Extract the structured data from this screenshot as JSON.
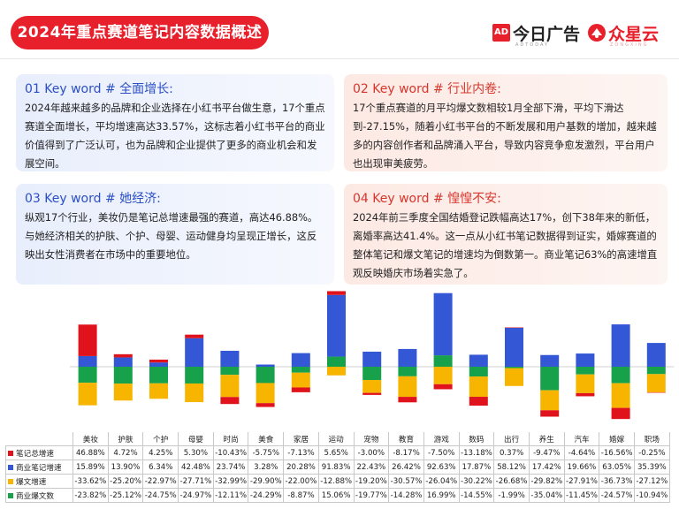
{
  "header": {
    "title": "2024年重点赛道笔记内容数据概述",
    "logo1_name": "今日广告",
    "logo1_mark": "AD",
    "logo1_sub": "ADTODAY",
    "logo2_name": "众星云",
    "logo2_sub": "ZONGXING"
  },
  "cards": [
    {
      "keyword": "01 Key word # 全面增长:",
      "text": "2024年越来越多的品牌和企业选择在小红书平台做生意，17个重点赛道全面增长，平均增速高达33.57%，这标志着小红书平台的商业价值得到了广泛认可，也为品牌和企业提供了更多的商业机会和发展空间。"
    },
    {
      "keyword": "02 Key word # 行业内卷:",
      "text": "17个重点赛道的月平均爆文数相较1月全部下滑，平均下滑达到-27.15%，随着小红书平台的不断发展和用户基数的增加，越来越多的内容创作者和品牌涌入平台，导致内容竞争愈发激烈，平台用户也出现审美疲劳。"
    },
    {
      "keyword": "03 Key word # 她经济:",
      "text": "纵观17个行业，美妆仍是笔记总增速最强的赛道，高达46.88%。与她经济相关的护肤、个护、母婴、运动健身均呈现正增长，这反映出女性消费者在市场中的重要地位。"
    },
    {
      "keyword": "04 Key word # 惶惶不安:",
      "text": "2024年前三季度全国结婚登记跌幅高达17%，创下38年来的新低，离婚率高达41.4%。这一点从小红书笔记数据得到证实，婚嫁赛道的整体笔记和爆文笔记的增速均为倒数第一。商业笔记63%的高速增直观反映婚庆市场着实急了。"
    }
  ],
  "colors": {
    "total": "#e0121c",
    "commercial": "#3457d5",
    "hot": "#f7b500",
    "commercial_hot": "#17a14a"
  },
  "chart_data": {
    "type": "bar",
    "stacked": true,
    "categories": [
      "美妆",
      "护肤",
      "个护",
      "母婴",
      "时尚",
      "美食",
      "家居",
      "运动",
      "宠物",
      "教育",
      "游戏",
      "数码",
      "出行",
      "养生",
      "汽车",
      "婚嫁",
      "职场"
    ],
    "series": [
      {
        "name": "笔记总增速",
        "color": "#e0121c",
        "values": [
          "46.88%",
          "4.72%",
          "4.25%",
          "5.30%",
          "-10.43%",
          "-5.75%",
          "-7.13%",
          "5.65%",
          "-3.00%",
          "-8.17%",
          "-7.50%",
          "-13.18%",
          "0.37%",
          "-9.47%",
          "-4.64%",
          "-16.56%",
          "-0.25%"
        ]
      },
      {
        "name": "商业笔记增速",
        "color": "#3457d5",
        "values": [
          "15.89%",
          "13.90%",
          "6.34%",
          "42.48%",
          "23.74%",
          "3.28%",
          "20.28%",
          "91.83%",
          "22.43%",
          "26.42%",
          "92.63%",
          "17.87%",
          "58.12%",
          "17.42%",
          "19.66%",
          "63.05%",
          "35.39%"
        ]
      },
      {
        "name": "爆文增速",
        "color": "#f7b500",
        "values": [
          "-33.62%",
          "-25.20%",
          "-22.97%",
          "-27.71%",
          "-32.99%",
          "-29.90%",
          "-22.00%",
          "-12.88%",
          "-19.20%",
          "-30.57%",
          "-26.04%",
          "-30.22%",
          "-26.68%",
          "-29.82%",
          "-27.91%",
          "-36.73%",
          "-27.12%"
        ]
      },
      {
        "name": "商业爆文数",
        "color": "#17a14a",
        "values": [
          "-23.82%",
          "-25.12%",
          "-24.75%",
          "-24.97%",
          "-12.11%",
          "-24.29%",
          "-8.87%",
          "15.06%",
          "-19.77%",
          "-14.28%",
          "16.99%",
          "-14.55%",
          "-1.99%",
          "-35.04%",
          "-11.45%",
          "-24.57%",
          "-10.94%"
        ]
      }
    ]
  }
}
